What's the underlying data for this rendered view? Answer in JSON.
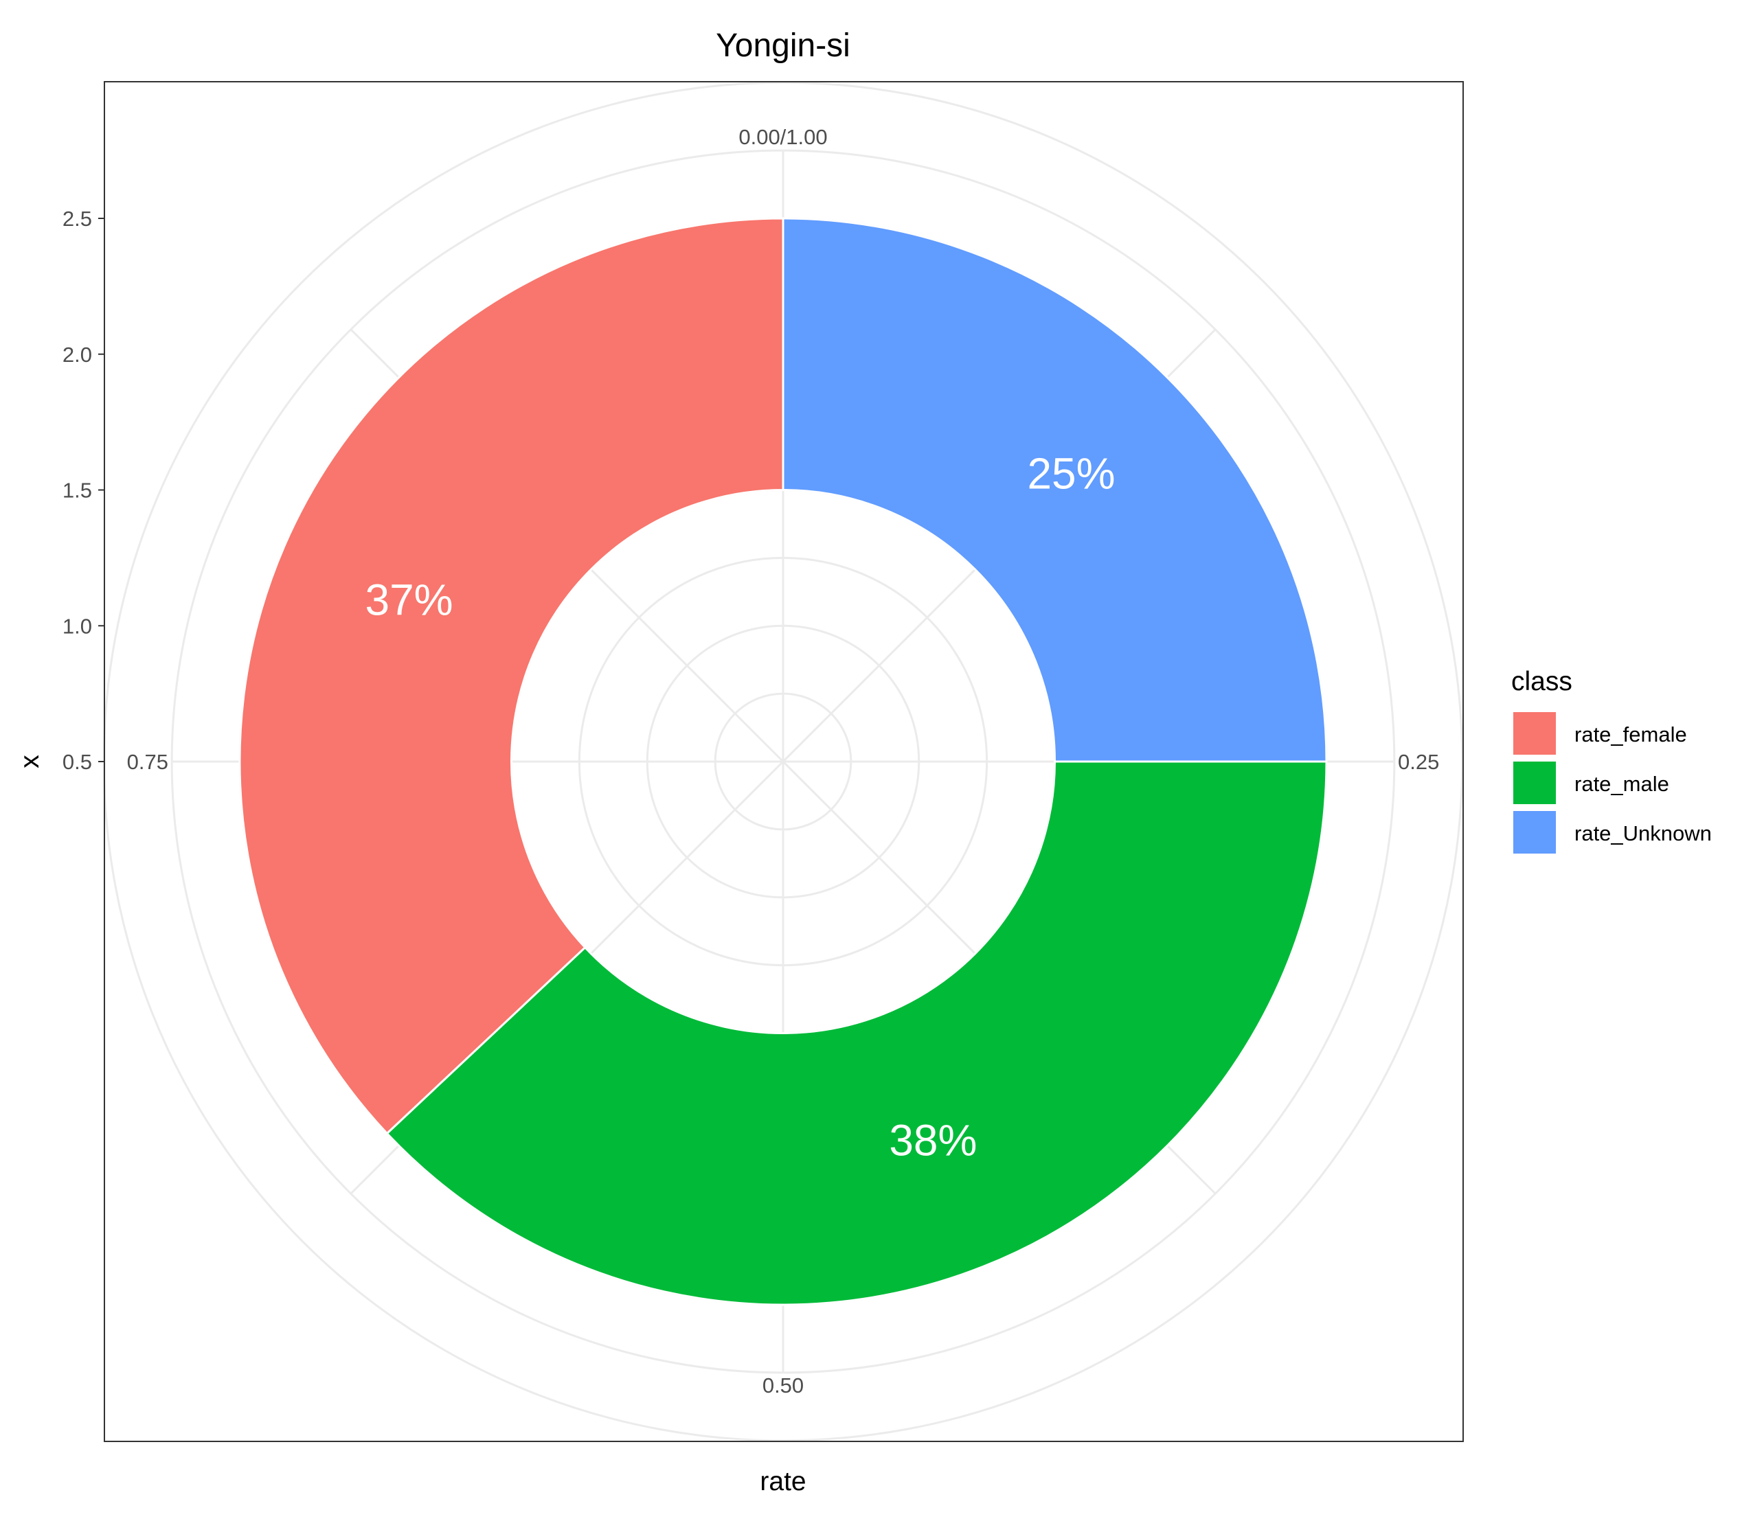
{
  "chart_data": {
    "type": "pie",
    "title": "Yongin-si",
    "xlabel": "rate",
    "ylabel": "x",
    "y_ticks": [
      "0.5",
      "1.0",
      "1.5",
      "2.0",
      "2.5"
    ],
    "y_tick_values": [
      0.5,
      1.0,
      1.5,
      2.0,
      2.5
    ],
    "angle_ticks": [
      "0.00/1.00",
      "0.25",
      "0.50",
      "0.75"
    ],
    "angle_tick_values": [
      0,
      0.25,
      0.5,
      0.75
    ],
    "slices": [
      {
        "name": "rate_Unknown",
        "value": 0.25,
        "label": "25%",
        "color": "#619CFF"
      },
      {
        "name": "rate_male",
        "value": 0.38,
        "label": "38%",
        "color": "#00BA38"
      },
      {
        "name": "rate_female",
        "value": 0.37,
        "label": "37%",
        "color": "#F8766D"
      }
    ],
    "ring": {
      "x_inner": 1.5,
      "x_outer": 2.5,
      "y_min": 0.5
    },
    "legend": {
      "title": "class",
      "position": "right",
      "items": [
        {
          "label": "rate_female",
          "color": "#F8766D"
        },
        {
          "label": "rate_male",
          "color": "#00BA38"
        },
        {
          "label": "rate_Unknown",
          "color": "#619CFF"
        }
      ]
    },
    "grid": true,
    "panel_border": true
  }
}
